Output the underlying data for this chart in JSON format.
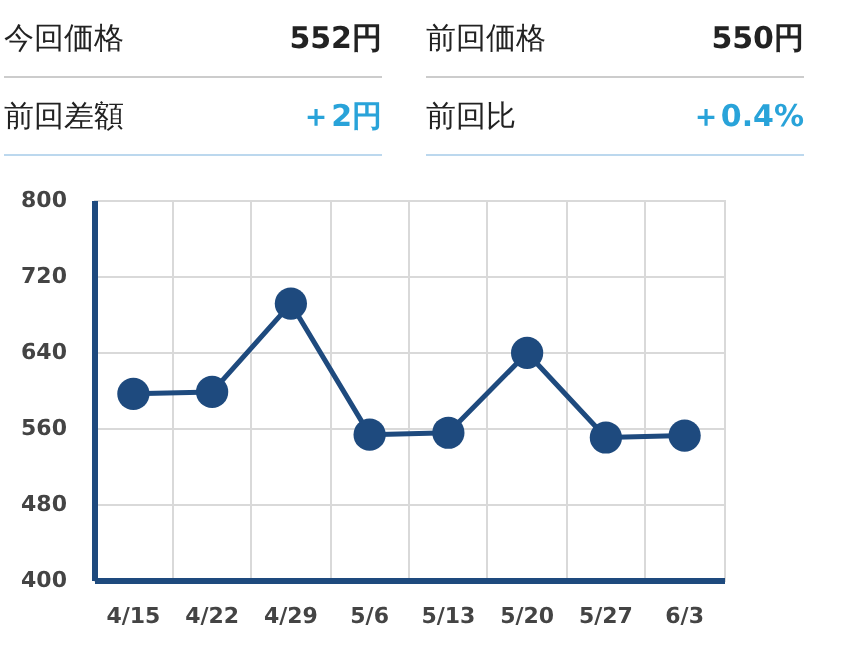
{
  "chart_data": [
    {
      "type": "other",
      "annotations": [
        "今回価格",
        "552円",
        "前回価格",
        "550円",
        "前回差額",
        "＋2円",
        "前回比",
        "＋0.4%"
      ]
    },
    {
      "type": "line",
      "categories": [
        "4/15",
        "4/22",
        "4/29",
        "5/6",
        "5/13",
        "5/20",
        "5/27",
        "6/3"
      ],
      "series": [
        {
          "color": "#1e4a7e",
          "values": [
            596,
            598,
            691,
            553,
            555,
            639,
            550,
            552
          ]
        }
      ],
      "ylim": [
        400,
        800
      ],
      "yticks": [
        400,
        480,
        560,
        640,
        720,
        800
      ],
      "grid": true,
      "marker": "circle",
      "legend": false
    }
  ]
}
